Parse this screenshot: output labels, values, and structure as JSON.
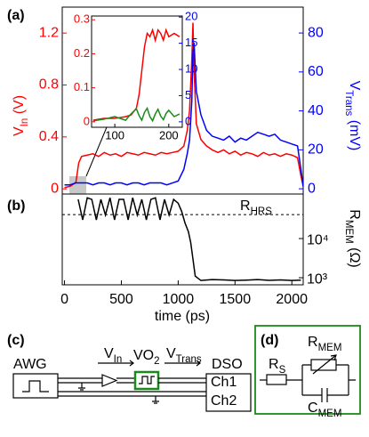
{
  "chart_data": [
    {
      "type": "line",
      "panel_label": "(a)",
      "x": [
        0,
        50,
        100,
        125,
        150,
        200,
        250,
        300,
        350,
        400,
        450,
        500,
        550,
        600,
        650,
        700,
        750,
        800,
        850,
        900,
        950,
        1000,
        1050,
        1080,
        1100,
        1120,
        1130,
        1140,
        1160,
        1200,
        1250,
        1300,
        1350,
        1400,
        1450,
        1500,
        1550,
        1600,
        1650,
        1700,
        1750,
        1800,
        1850,
        1900,
        1950,
        2000,
        2050,
        2080,
        2100
      ],
      "xlim": [
        -20,
        2100
      ],
      "y_label": [
        "V",
        "In",
        " (V)"
      ],
      "ylim": [
        -0.04,
        1.4
      ],
      "yticks": [
        0,
        0.4,
        0.8,
        1.2
      ],
      "y2_label": [
        "V",
        "Trans",
        " (mV)"
      ],
      "y2lim": [
        -2.7,
        93.3
      ],
      "y2ticks": [
        0,
        20,
        40,
        60,
        80
      ],
      "series": [
        {
          "color": "#ff0000",
          "values": [
            0.01,
            0.02,
            0.05,
            0.2,
            0.25,
            0.26,
            0.27,
            0.25,
            0.28,
            0.26,
            0.27,
            0.25,
            0.28,
            0.27,
            0.26,
            0.28,
            0.27,
            0.26,
            0.28,
            0.27,
            0.28,
            0.29,
            0.33,
            0.45,
            0.6,
            1.0,
            1.28,
            0.9,
            0.5,
            0.38,
            0.33,
            0.3,
            0.28,
            0.3,
            0.27,
            0.29,
            0.26,
            0.28,
            0.27,
            0.25,
            0.28,
            0.26,
            0.27,
            0.25,
            0.27,
            0.26,
            0.24,
            0.1,
            0.02
          ]
        },
        {
          "color": "#0000ff",
          "axis": "y2",
          "values": [
            2,
            2,
            3,
            3,
            3,
            3,
            2,
            3,
            3,
            2,
            3,
            3,
            2,
            3,
            3,
            2,
            3,
            3,
            3,
            2,
            3,
            4,
            10,
            18,
            25,
            45,
            70,
            75,
            50,
            38,
            30,
            27,
            26,
            25,
            27,
            24,
            26,
            25,
            27,
            29,
            28,
            27,
            28,
            25,
            24,
            23,
            22,
            10,
            1
          ]
        }
      ]
    },
    {
      "type": "line",
      "x": [
        60,
        80,
        100,
        120,
        130,
        140,
        145,
        150,
        155,
        160,
        165,
        170,
        175,
        180,
        185,
        190,
        195,
        200,
        210,
        220
      ],
      "xlim": [
        57,
        225
      ],
      "xticks": [
        100,
        200
      ],
      "ylim": [
        -0.016,
        0.311
      ],
      "yticks": [
        0,
        0.1,
        0.2,
        0.3
      ],
      "y2lim": [
        -1.04,
        20.2
      ],
      "y2ticks": [
        0,
        5,
        10,
        15,
        20
      ],
      "series": [
        {
          "color": "#ff0000",
          "values": [
            0.005,
            0.01,
            0.01,
            0.015,
            0.02,
            0.04,
            0.08,
            0.15,
            0.22,
            0.26,
            0.25,
            0.27,
            0.24,
            0.27,
            0.26,
            0.24,
            0.27,
            0.25,
            0.26,
            0.25
          ]
        },
        {
          "color": "#1a8a1a",
          "axis": "y2",
          "values": [
            0.2,
            0.5,
            1,
            0.3,
            1.5,
            2.5,
            1.2,
            0.3,
            1.8,
            2.6,
            1,
            0.2,
            1.5,
            2.4,
            1.1,
            0.4,
            1.6,
            2.2,
            1,
            1.5
          ]
        }
      ]
    },
    {
      "type": "line",
      "panel_label": "(b)",
      "log_y": true,
      "x": [
        120,
        160,
        200,
        240,
        280,
        320,
        360,
        400,
        440,
        480,
        520,
        560,
        600,
        640,
        680,
        720,
        760,
        800,
        840,
        880,
        920,
        960,
        1000,
        1030,
        1060,
        1090,
        1110,
        1130,
        1150,
        1200,
        1300,
        1400,
        1500,
        1600,
        1700,
        1800,
        1900,
        2000,
        2080
      ],
      "xlim": [
        -20,
        2100
      ],
      "xticks": [
        0,
        500,
        1000,
        1500,
        2000
      ],
      "x_label": "time (ps)",
      "y2_label": [
        "R",
        "MEM",
        " (Ω)"
      ],
      "ylim": [
        660,
        137000
      ],
      "yticks": [
        {
          "value": 1000,
          "label": "10³"
        },
        {
          "value": 10000,
          "label": "10⁴"
        }
      ],
      "reference": {
        "label": [
          "R",
          "HRS"
        ],
        "value": 41000
      },
      "series": [
        {
          "color": "#000000",
          "values": [
            100000,
            30000,
            110000,
            100000,
            30000,
            100000,
            40000,
            110000,
            30000,
            100000,
            100000,
            30000,
            110000,
            40000,
            100000,
            30000,
            100000,
            110000,
            30000,
            100000,
            40000,
            100000,
            80000,
            50000,
            25000,
            15000,
            8000,
            3000,
            1100,
            850,
            900,
            880,
            850,
            870,
            900,
            860,
            880,
            850,
            870
          ]
        }
      ]
    }
  ],
  "diagram_c": {
    "panel_label": "(c)",
    "awg": "AWG",
    "v_in": [
      "V",
      "In"
    ],
    "device": [
      "VO",
      "2"
    ],
    "v_trans": [
      "V",
      "Trans"
    ],
    "dso": "DSO",
    "ch1": "Ch1",
    "ch2": "Ch2"
  },
  "diagram_d": {
    "panel_label": "(d)",
    "r_s": [
      "R",
      "S"
    ],
    "r_mem": [
      "R",
      "MEM"
    ],
    "c_mem": [
      "C",
      "MEM"
    ]
  }
}
